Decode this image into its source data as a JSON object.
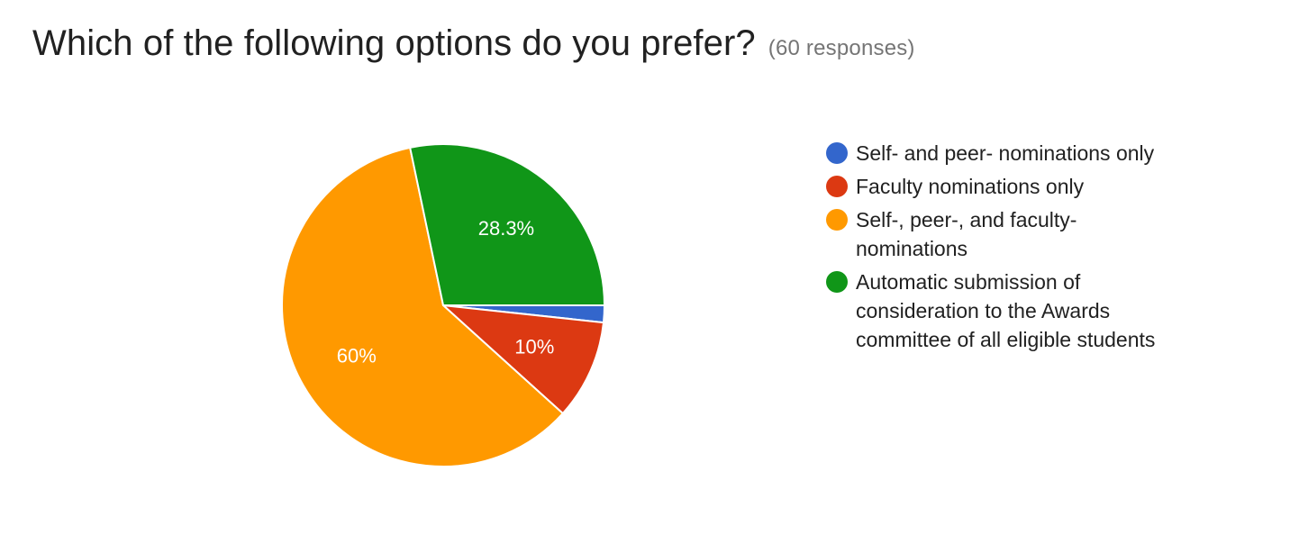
{
  "header": {
    "question": "Which of the following options do you prefer?",
    "responses": "(60 responses)"
  },
  "chart_data": {
    "type": "pie",
    "title": "Which of the following options do you prefer?",
    "subtitle": "(60 responses)",
    "categories": [
      "Self- and peer- nominations only",
      "Faculty nominations only",
      "Self-, peer-, and faculty- nominations",
      "Automatic submission of consideration to the Awards committee of all eligible students"
    ],
    "values": [
      1.7,
      10,
      60,
      28.3
    ],
    "data_labels": [
      "",
      "10%",
      "60%",
      "28.3%"
    ],
    "colors": [
      "#3366CC",
      "#DC3912",
      "#FF9900",
      "#109618"
    ],
    "legend_position": "right"
  }
}
